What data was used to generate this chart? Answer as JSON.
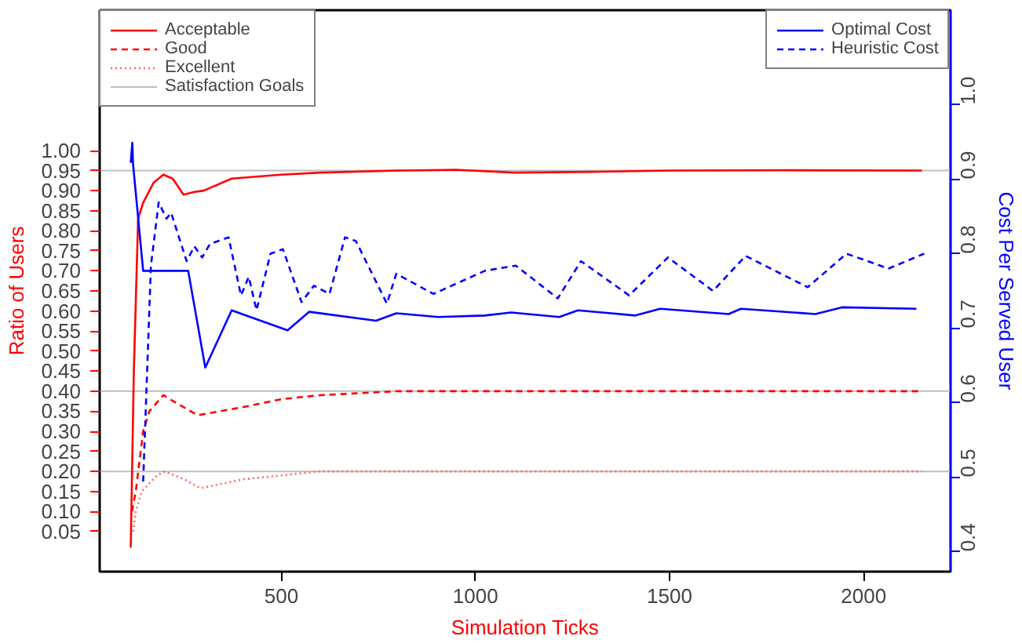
{
  "chart_data": {
    "type": "line",
    "xlabel": "Simulation Ticks",
    "ylabel": "Ratio of Users",
    "y2label": "Cost Per Served User",
    "xlim": [
      32,
      2224
    ],
    "xticks": [
      500,
      1000,
      1500,
      2000
    ],
    "ylim": [
      -0.05,
      1.35
    ],
    "yticks": [
      {
        "value": 0.05,
        "label": "0.05"
      },
      {
        "value": 0.1,
        "label": "0.10"
      },
      {
        "value": 0.15,
        "label": "0.15"
      },
      {
        "value": 0.2,
        "label": "0.20"
      },
      {
        "value": 0.25,
        "label": "0.25"
      },
      {
        "value": 0.3,
        "label": "0.30"
      },
      {
        "value": 0.35,
        "label": "0.35"
      },
      {
        "value": 0.4,
        "label": "0.40"
      },
      {
        "value": 0.45,
        "label": "0.45"
      },
      {
        "value": 0.5,
        "label": "0.50"
      },
      {
        "value": 0.55,
        "label": "0.55"
      },
      {
        "value": 0.6,
        "label": "0.60"
      },
      {
        "value": 0.65,
        "label": "0.65"
      },
      {
        "value": 0.7,
        "label": "0.70"
      },
      {
        "value": 0.75,
        "label": "0.75"
      },
      {
        "value": 0.8,
        "label": "0.80"
      },
      {
        "value": 0.85,
        "label": "0.85"
      },
      {
        "value": 0.9,
        "label": "0.90"
      },
      {
        "value": 0.95,
        "label": "0.95"
      },
      {
        "value": 1.0,
        "label": "1.00"
      }
    ],
    "y2lim": [
      0.373,
      1.127
    ],
    "y2ticks": [
      0.4,
      0.5,
      0.6,
      0.7,
      0.8,
      0.9,
      {
        "value": 1.0,
        "label": "1.0"
      }
    ],
    "legend": "top",
    "grid": false,
    "ref_lines": [
      {
        "axis": "y",
        "value": 0.95,
        "label": "Satisfaction Goals",
        "color": "#bebebe"
      },
      {
        "axis": "y",
        "value": 0.4,
        "color": "#bebebe"
      },
      {
        "axis": "y",
        "value": 0.2,
        "color": "#bebebe"
      }
    ],
    "series": [
      {
        "name": "Acceptable",
        "color": "#ff0000",
        "line_style": "solid",
        "axis": "y",
        "x": [
          112,
          120,
          131,
          144,
          171,
          196,
          220,
          248,
          276,
          300,
          372,
          500,
          600,
          800,
          950,
          1100,
          1300,
          1500,
          1800,
          2150
        ],
        "values": [
          0.01,
          0.45,
          0.83,
          0.87,
          0.92,
          0.94,
          0.93,
          0.89,
          0.897,
          0.9,
          0.93,
          0.94,
          0.945,
          0.95,
          0.952,
          0.945,
          0.947,
          0.95,
          0.951,
          0.95
        ]
      },
      {
        "name": "Good",
        "color": "#ff0000",
        "line_style": "dashed",
        "axis": "y",
        "x": [
          115,
          125,
          144,
          160,
          196,
          230,
          284,
          400,
          500,
          600,
          800,
          1000,
          1500,
          2150
        ],
        "values": [
          0.1,
          0.15,
          0.3,
          0.35,
          0.39,
          0.37,
          0.34,
          0.36,
          0.38,
          0.39,
          0.4,
          0.4,
          0.4,
          0.4
        ]
      },
      {
        "name": "Excellent",
        "color": "#ff6666",
        "line_style": "dotted",
        "axis": "y",
        "x": [
          118,
          125,
          140,
          180,
          200,
          250,
          292,
          400,
          500,
          600,
          1000,
          1500,
          2150
        ],
        "values": [
          0.05,
          0.1,
          0.15,
          0.19,
          0.2,
          0.18,
          0.158,
          0.18,
          0.19,
          0.2,
          0.2,
          0.2,
          0.2
        ]
      },
      {
        "name": "Optimal Cost",
        "color": "#0000ff",
        "line_style": "solid",
        "axis": "y2",
        "x": [
          112,
          116,
          118,
          144,
          200,
          260,
          304,
          372,
          516,
          572,
          744,
          796,
          904,
          1024,
          1092,
          1216,
          1264,
          1412,
          1476,
          1652,
          1684,
          1876,
          1944,
          2136
        ],
        "values": [
          0.922,
          0.949,
          0.92,
          0.777,
          0.777,
          0.777,
          0.647,
          0.724,
          0.697,
          0.722,
          0.71,
          0.72,
          0.715,
          0.717,
          0.721,
          0.715,
          0.724,
          0.717,
          0.726,
          0.719,
          0.726,
          0.719,
          0.728,
          0.726
        ]
      },
      {
        "name": "Heuristic Cost",
        "color": "#0000ff",
        "line_style": "dashed",
        "axis": "y2",
        "x": [
          144,
          164,
          184,
          204,
          216,
          256,
          276,
          296,
          316,
          364,
          396,
          416,
          436,
          472,
          504,
          552,
          584,
          624,
          664,
          692,
          772,
          796,
          892,
          1024,
          1104,
          1212,
          1272,
          1396,
          1496,
          1612,
          1696,
          1856,
          1956,
          2064,
          2156
        ],
        "values": [
          0.494,
          0.784,
          0.869,
          0.847,
          0.855,
          0.79,
          0.81,
          0.795,
          0.813,
          0.822,
          0.744,
          0.769,
          0.724,
          0.8,
          0.806,
          0.735,
          0.757,
          0.746,
          0.822,
          0.817,
          0.733,
          0.773,
          0.746,
          0.777,
          0.784,
          0.74,
          0.79,
          0.744,
          0.795,
          0.75,
          0.797,
          0.755,
          0.8,
          0.78,
          0.8
        ]
      }
    ]
  }
}
